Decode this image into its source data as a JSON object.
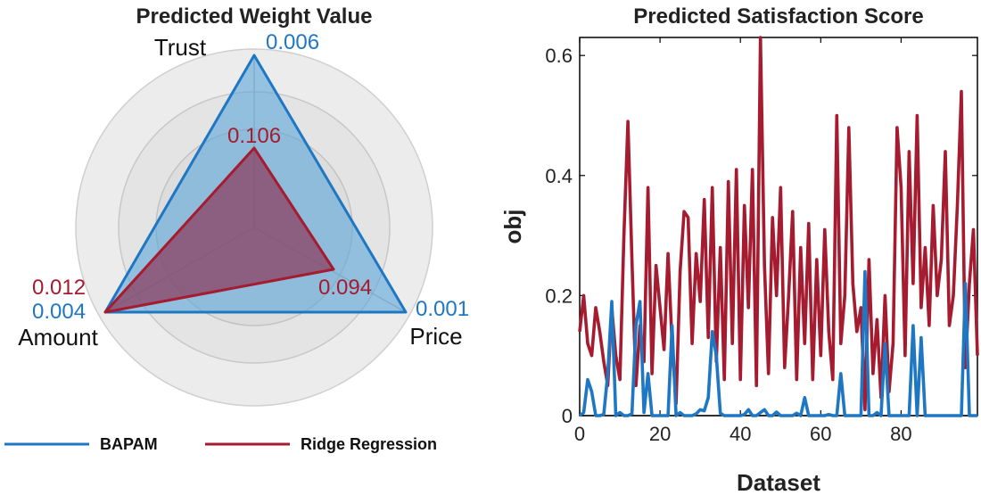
{
  "chart_data": [
    {
      "type": "radar",
      "title": "Predicted Weight Value",
      "axes": [
        "Trust",
        "Price",
        "Amount"
      ],
      "series": [
        {
          "name": "BAPAM",
          "color": "#1f77c4",
          "fill": "#5fa8d8",
          "value_labels": [
            "0.006",
            "0.001",
            "0.004"
          ]
        },
        {
          "name": "Ridge Regression",
          "color": "#a51c30",
          "fill": "#8a3a5c",
          "value_labels": [
            "0.106",
            "0.094",
            "0.012"
          ]
        }
      ],
      "legend": {
        "position": "bottom",
        "entries": [
          "BAPAM",
          "Ridge Regression"
        ]
      }
    },
    {
      "type": "line",
      "title": "Predicted Satisfaction Score",
      "xlabel": "Dataset",
      "ylabel": "obj",
      "xlim": [
        0,
        99
      ],
      "ylim": [
        0,
        0.63
      ],
      "x_ticks": [
        0,
        20,
        40,
        60,
        80
      ],
      "y_ticks": [
        0,
        0.2,
        0.4,
        0.6
      ],
      "x_tick_labels": [
        "0",
        "20",
        "40",
        "60",
        "80"
      ],
      "y_tick_labels": [
        "0",
        "0.2",
        "0.4",
        "0.6"
      ],
      "series": [
        {
          "name": "Ridge Regression",
          "color": "#a51c30",
          "values": [
            0.14,
            0.2,
            0.12,
            0.1,
            0.18,
            0.14,
            0.09,
            0.05,
            0.18,
            0.1,
            0.06,
            0.3,
            0.49,
            0.26,
            0.05,
            0.15,
            0.09,
            0.38,
            0.07,
            0.25,
            0.18,
            0.11,
            0.27,
            0.12,
            0.02,
            0.24,
            0.34,
            0.33,
            0.12,
            0.27,
            0.19,
            0.36,
            0.13,
            0.38,
            0.09,
            0.28,
            0.06,
            0.39,
            0.12,
            0.41,
            0.06,
            0.35,
            0.18,
            0.41,
            0.05,
            0.63,
            0.25,
            0.07,
            0.33,
            0.2,
            0.38,
            0.08,
            0.2,
            0.34,
            0.06,
            0.28,
            0.12,
            0.32,
            0.06,
            0.26,
            0.1,
            0.31,
            0.14,
            0.06,
            0.5,
            0.12,
            0.2,
            0.48,
            0.22,
            0.14,
            0.18,
            0.01,
            0.26,
            0.07,
            0.16,
            0.03,
            0.2,
            0.04,
            0.12,
            0.48,
            0.38,
            0.1,
            0.44,
            0.22,
            0.5,
            0.18,
            0.28,
            0.15,
            0.35,
            0.2,
            0.26,
            0.44,
            0.15,
            0.2,
            0.35,
            0.54,
            0.08,
            0.22,
            0.31,
            0.1
          ]
        },
        {
          "name": "BAPAM",
          "color": "#1f77c4",
          "values": [
            0.0,
            0.005,
            0.06,
            0.04,
            0.0,
            0.0,
            0.002,
            0.07,
            0.19,
            0.0,
            0.005,
            0.0,
            0.0,
            0.003,
            0.15,
            0.19,
            0.005,
            0.07,
            0.0,
            0.0,
            0.0,
            0.0,
            0.0,
            0.15,
            0.0,
            0.005,
            0.0,
            0.0,
            0.0,
            0.003,
            0.01,
            0.008,
            0.03,
            0.14,
            0.1,
            0.004,
            0.0,
            0.0,
            0.0,
            0.0,
            0.0,
            0.002,
            0.01,
            0.0,
            0.0,
            0.005,
            0.01,
            0.0,
            0.0,
            0.006,
            0.0,
            0.0,
            0.0,
            0.0,
            0.004,
            0.0,
            0.03,
            0.0,
            0.0,
            0.0,
            0.0,
            0.0,
            0.002,
            0.0,
            0.0,
            0.07,
            0.0,
            0.0,
            0.0,
            0.0,
            0.0,
            0.24,
            0.0,
            0.0,
            0.005,
            0.0,
            0.12,
            0.0,
            0.0,
            0.0,
            0.0,
            0.0,
            0.0,
            0.15,
            0.0,
            0.13,
            0.0,
            0.0,
            0.0,
            0.0,
            0.0,
            0.0,
            0.0,
            0.0,
            0.0,
            0.0,
            0.22,
            0.0,
            0.0,
            0.0
          ]
        }
      ]
    }
  ]
}
